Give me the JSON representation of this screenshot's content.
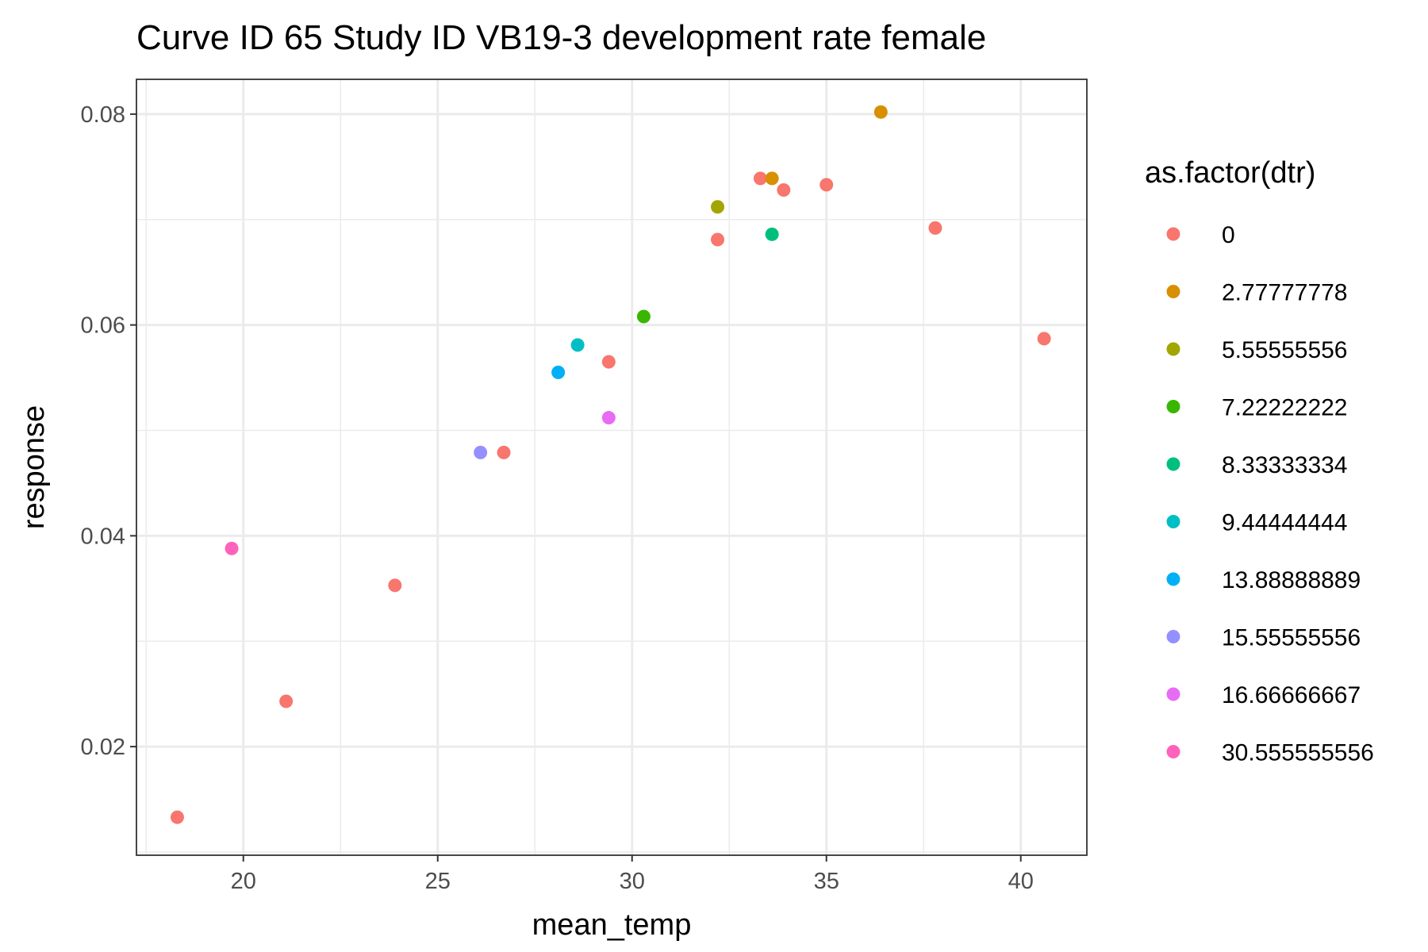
{
  "chart_data": {
    "type": "scatter",
    "title": "Curve ID 65 Study ID VB19-3 development rate female",
    "xlabel": "mean_temp",
    "ylabel": "response",
    "xlim": [
      17.25,
      41.7
    ],
    "ylim": [
      0.0097,
      0.0833
    ],
    "x_ticks": [
      20,
      25,
      30,
      35,
      40
    ],
    "x_tick_labels": [
      "20",
      "25",
      "30",
      "35",
      "40"
    ],
    "y_ticks": [
      0.02,
      0.04,
      0.06,
      0.08
    ],
    "y_tick_labels": [
      "0.02",
      "0.04",
      "0.06",
      "0.08"
    ],
    "grid": true,
    "legend": {
      "title": "as.factor(dtr)",
      "position": "right"
    },
    "series": [
      {
        "name": "0",
        "color": "#F8766D",
        "points": [
          {
            "x": 18.3,
            "y": 0.0133
          },
          {
            "x": 21.1,
            "y": 0.0243
          },
          {
            "x": 23.9,
            "y": 0.0353
          },
          {
            "x": 26.7,
            "y": 0.0479
          },
          {
            "x": 29.4,
            "y": 0.0565
          },
          {
            "x": 32.2,
            "y": 0.0681
          },
          {
            "x": 33.3,
            "y": 0.0739
          },
          {
            "x": 33.9,
            "y": 0.0728
          },
          {
            "x": 35.0,
            "y": 0.0733
          },
          {
            "x": 37.8,
            "y": 0.0692
          },
          {
            "x": 40.6,
            "y": 0.0587
          }
        ]
      },
      {
        "name": "2.77777778",
        "color": "#D89000",
        "points": [
          {
            "x": 33.6,
            "y": 0.0739
          },
          {
            "x": 36.4,
            "y": 0.0802
          }
        ]
      },
      {
        "name": "5.55555556",
        "color": "#A3A500",
        "points": [
          {
            "x": 32.2,
            "y": 0.0712
          }
        ]
      },
      {
        "name": "7.22222222",
        "color": "#39B600",
        "points": [
          {
            "x": 30.3,
            "y": 0.0608
          }
        ]
      },
      {
        "name": "8.33333334",
        "color": "#00BF7D",
        "points": [
          {
            "x": 33.6,
            "y": 0.0686
          }
        ]
      },
      {
        "name": "9.44444444",
        "color": "#00BFC4",
        "points": [
          {
            "x": 28.6,
            "y": 0.0581
          }
        ]
      },
      {
        "name": "13.88888889",
        "color": "#00B0F6",
        "points": [
          {
            "x": 28.1,
            "y": 0.0555
          }
        ]
      },
      {
        "name": "15.55555556",
        "color": "#9590FF",
        "points": [
          {
            "x": 26.1,
            "y": 0.0479
          }
        ]
      },
      {
        "name": "16.66666667",
        "color": "#E76BF3",
        "points": [
          {
            "x": 29.4,
            "y": 0.0512
          }
        ]
      },
      {
        "name": "30.555555556",
        "color": "#FF62BC",
        "points": [
          {
            "x": 19.7,
            "y": 0.0388
          }
        ]
      }
    ]
  }
}
